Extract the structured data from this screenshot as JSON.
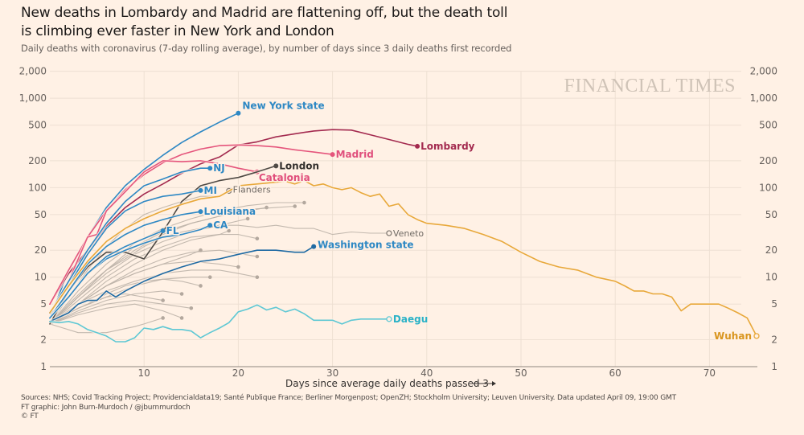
{
  "header": {
    "title_line1": "New deaths in Lombardy and Madrid are flattening off, but the death toll",
    "title_line2": "is climbing ever faster in New York and London",
    "subtitle": "Daily deaths with coronavirus (7-day rolling average), by number of days since 3 daily deaths first recorded"
  },
  "watermark": "FINANCIAL TIMES",
  "footer": {
    "sources": "Sources: NHS; Covid Tracking Project; Providencialdata19; Santé Publique France; Berliner Morgenpost; OpenZH; Stockholm University; Leuven University. Data updated April 09, 19:00 GMT",
    "credit": "FT graphic: John Burn-Murdoch / @jburnmurdoch",
    "copyright": "© FT"
  },
  "chart_data": {
    "type": "line",
    "title": "New deaths in Lombardy and Madrid are flattening off, but the death toll is climbing ever faster in New York and London",
    "subtitle": "Daily deaths with coronavirus (7-day rolling average), by number of days since 3 daily deaths first recorded",
    "xlabel": "Days since average daily deaths passed 3 →",
    "ylabel": "",
    "yscale": "log",
    "xlim": [
      0,
      76
    ],
    "ylim": [
      1,
      2000
    ],
    "xticks": [
      10,
      20,
      30,
      40,
      50,
      60,
      70
    ],
    "yticks": [
      1,
      2,
      5,
      10,
      20,
      50,
      100,
      200,
      500,
      1000,
      2000
    ],
    "ytick_labels": [
      "1",
      "2",
      "5",
      "10",
      "20",
      "50",
      "100",
      "200",
      "500",
      "1,000",
      "2,000"
    ],
    "grid": true,
    "legend": "direct-labels",
    "colors": {
      "blue": "#2e88c4",
      "darkblue": "#1f6aa3",
      "pink": "#e5557c",
      "crimson": "#a32a4f",
      "dark": "#4f4a45",
      "orange": "#e8a83a",
      "teal": "#5fc8d4",
      "grey": "#bdb2a8"
    },
    "series": [
      {
        "name": "New York state",
        "color": "blue",
        "label": true,
        "x": [
          0,
          2,
          4,
          6,
          8,
          10,
          12,
          14,
          16,
          18,
          20
        ],
        "y": [
          3.5,
          12,
          28,
          60,
          105,
          160,
          230,
          320,
          420,
          540,
          680
        ]
      },
      {
        "name": "Lombardy",
        "color": "crimson",
        "label": true,
        "x": [
          0,
          2,
          4,
          6,
          8,
          10,
          12,
          14,
          16,
          18,
          20,
          22,
          24,
          26,
          28,
          30,
          32,
          34,
          36,
          38,
          39
        ],
        "y": [
          5,
          11,
          20,
          37,
          60,
          85,
          110,
          145,
          185,
          220,
          300,
          325,
          370,
          400,
          430,
          445,
          440,
          390,
          345,
          305,
          290
        ]
      },
      {
        "name": "Madrid",
        "color": "pink",
        "label": true,
        "x": [
          0,
          2,
          4,
          6,
          8,
          10,
          12,
          14,
          16,
          18,
          20,
          22,
          24,
          26,
          28,
          30
        ],
        "y": [
          5,
          12,
          28,
          55,
          95,
          140,
          190,
          235,
          270,
          295,
          300,
          295,
          285,
          265,
          250,
          235
        ]
      },
      {
        "name": "Catalonia",
        "color": "pink",
        "label": true,
        "x": [
          0,
          2,
          4,
          5,
          6,
          8,
          10,
          12,
          14,
          16,
          18,
          20,
          22
        ],
        "y": [
          4,
          9,
          28,
          30,
          55,
          90,
          150,
          200,
          195,
          200,
          185,
          165,
          150
        ]
      },
      {
        "name": "London",
        "color": "dark",
        "label": true,
        "x": [
          0,
          2,
          4,
          6,
          8,
          10,
          12,
          14,
          16,
          18,
          20,
          22,
          24
        ],
        "y": [
          3,
          7,
          13,
          19,
          19,
          16,
          32,
          70,
          105,
          120,
          130,
          150,
          175
        ]
      },
      {
        "name": "NJ",
        "color": "blue",
        "label": true,
        "x": [
          0,
          2,
          4,
          6,
          8,
          10,
          12,
          14,
          16,
          17
        ],
        "y": [
          4,
          9,
          20,
          40,
          70,
          105,
          125,
          150,
          165,
          165
        ]
      },
      {
        "name": "MI",
        "color": "blue",
        "label": true,
        "x": [
          0,
          2,
          4,
          6,
          8,
          10,
          12,
          14,
          16
        ],
        "y": [
          4,
          8,
          18,
          35,
          55,
          70,
          80,
          85,
          93
        ]
      },
      {
        "name": "Louisiana",
        "color": "blue",
        "label": true,
        "x": [
          0,
          2,
          4,
          6,
          8,
          10,
          12,
          14,
          16
        ],
        "y": [
          3.5,
          7,
          14,
          22,
          30,
          38,
          44,
          50,
          54
        ]
      },
      {
        "name": "CA",
        "color": "blue",
        "label": true,
        "x": [
          0,
          2,
          4,
          6,
          8,
          10,
          12,
          14,
          16,
          17
        ],
        "y": [
          3.5,
          6,
          11,
          16,
          20,
          24,
          28,
          30,
          34,
          38
        ]
      },
      {
        "name": "FL",
        "color": "blue",
        "label": true,
        "x": [
          0,
          2,
          4,
          6,
          8,
          10,
          12
        ],
        "y": [
          3.5,
          6,
          11,
          17,
          22,
          27,
          33
        ]
      },
      {
        "name": "Washington state",
        "color": "darkblue",
        "label": true,
        "x": [
          0,
          2,
          3,
          4,
          5,
          6,
          7,
          8,
          10,
          12,
          14,
          16,
          18,
          20,
          22,
          24,
          26,
          27,
          28
        ],
        "y": [
          3.2,
          4,
          5,
          5.5,
          5.5,
          7,
          6,
          7,
          9,
          11,
          13,
          15,
          16,
          18,
          20,
          20,
          19,
          19,
          22
        ]
      },
      {
        "name": "Flanders",
        "color": "grey",
        "label": true,
        "x": [
          0,
          2,
          4,
          6,
          8,
          10,
          12,
          14,
          16,
          18,
          19
        ],
        "y": [
          3,
          6,
          12,
          22,
          35,
          50,
          60,
          70,
          80,
          80,
          92
        ]
      },
      {
        "name": "Veneto",
        "color": "grey",
        "label": true,
        "x": [
          0,
          2,
          4,
          6,
          8,
          10,
          12,
          14,
          16,
          18,
          20,
          22,
          24,
          26,
          28,
          30,
          32,
          34,
          36
        ],
        "y": [
          3,
          5,
          8,
          12,
          16,
          22,
          28,
          32,
          35,
          38,
          38,
          36,
          38,
          35,
          35,
          30,
          32,
          31,
          31
        ]
      },
      {
        "name": "Daegu",
        "color": "teal",
        "label": true,
        "x": [
          0,
          1,
          2,
          3,
          4,
          5,
          6,
          7,
          8,
          9,
          10,
          11,
          12,
          13,
          14,
          15,
          16,
          17,
          18,
          19,
          20,
          21,
          22,
          23,
          24,
          25,
          26,
          27,
          28,
          29,
          30,
          31,
          32,
          33,
          34,
          35,
          36
        ],
        "y": [
          3.2,
          3.1,
          3.2,
          3,
          2.6,
          2.4,
          2.2,
          1.9,
          1.9,
          2.1,
          2.7,
          2.6,
          2.8,
          2.6,
          2.6,
          2.5,
          2.1,
          2.4,
          2.7,
          3.1,
          4.1,
          4.4,
          4.9,
          4.3,
          4.6,
          4.1,
          4.4,
          3.9,
          3.3,
          3.3,
          3.3,
          3.0,
          3.3,
          3.4,
          3.4,
          3.4,
          3.4
        ]
      },
      {
        "name": "Wuhan",
        "color": "orange",
        "label": true,
        "x": [
          0,
          2,
          4,
          6,
          8,
          10,
          12,
          14,
          16,
          18,
          20,
          22,
          24,
          25,
          26,
          27,
          28,
          29,
          30,
          31,
          32,
          33,
          34,
          35,
          36,
          37,
          38,
          39,
          40,
          42,
          44,
          46,
          48,
          50,
          52,
          54,
          56,
          58,
          60,
          61,
          62,
          63,
          64,
          65,
          66,
          67,
          68,
          69,
          70,
          71,
          72,
          73,
          74,
          75
        ],
        "y": [
          4,
          8,
          15,
          25,
          35,
          45,
          55,
          65,
          75,
          80,
          105,
          110,
          115,
          118,
          110,
          120,
          105,
          110,
          100,
          95,
          100,
          88,
          80,
          85,
          62,
          66,
          50,
          44,
          40,
          38,
          35,
          30,
          25,
          19,
          15,
          13,
          12,
          10,
          9,
          8,
          7,
          7,
          6.5,
          6.5,
          6,
          4.2,
          5,
          5,
          5,
          5,
          4.5,
          4,
          3.5,
          2.2
        ]
      },
      {
        "name": "Other regions",
        "color": "grey",
        "label": false,
        "x": [
          0,
          3,
          6,
          9,
          12,
          15,
          18,
          21,
          24,
          27
        ],
        "y": [
          3,
          7,
          14,
          24,
          35,
          45,
          55,
          63,
          68,
          68
        ]
      },
      {
        "name": "Other regions",
        "color": "grey",
        "label": false,
        "x": [
          0,
          3,
          6,
          9,
          12,
          15,
          18,
          21,
          23
        ],
        "y": [
          3,
          6,
          12,
          20,
          30,
          40,
          48,
          55,
          60
        ]
      },
      {
        "name": "Other regions",
        "color": "grey",
        "label": false,
        "x": [
          0,
          3,
          6,
          9,
          12,
          15,
          18,
          20,
          22
        ],
        "y": [
          3,
          5.5,
          10,
          16,
          22,
          28,
          30,
          30,
          27
        ]
      },
      {
        "name": "Other regions",
        "color": "grey",
        "label": false,
        "x": [
          0,
          3,
          6,
          9,
          12,
          15,
          18,
          22
        ],
        "y": [
          3,
          5,
          8,
          12,
          16,
          19,
          20,
          17
        ]
      },
      {
        "name": "Other regions",
        "color": "grey",
        "label": false,
        "x": [
          0,
          3,
          6,
          9,
          12,
          15,
          18,
          20
        ],
        "y": [
          3,
          5,
          8,
          11,
          14,
          15,
          14,
          13
        ]
      },
      {
        "name": "Other regions",
        "color": "grey",
        "label": false,
        "x": [
          0,
          3,
          6,
          9,
          12,
          15,
          18,
          20,
          22
        ],
        "y": [
          3,
          5,
          7,
          9,
          11,
          12,
          12,
          11,
          10
        ]
      },
      {
        "name": "Other regions",
        "color": "grey",
        "label": false,
        "x": [
          0,
          3,
          6,
          9,
          12,
          15,
          17
        ],
        "y": [
          3,
          4.5,
          6,
          8,
          9.5,
          10,
          10
        ]
      },
      {
        "name": "Other regions",
        "color": "grey",
        "label": false,
        "x": [
          0,
          3,
          6,
          9,
          12,
          14
        ],
        "y": [
          3,
          4.2,
          5.5,
          6.5,
          7,
          6.5
        ]
      },
      {
        "name": "Other regions",
        "color": "grey",
        "label": false,
        "x": [
          0,
          3,
          6,
          9,
          12,
          15
        ],
        "y": [
          3,
          4,
          5,
          5.5,
          5,
          4.5
        ]
      },
      {
        "name": "Other regions",
        "color": "grey",
        "label": false,
        "x": [
          0,
          3,
          6,
          9,
          12,
          14
        ],
        "y": [
          3,
          3.8,
          4.5,
          5,
          4.2,
          3.5
        ]
      },
      {
        "name": "Other regions",
        "color": "grey",
        "label": false,
        "x": [
          0,
          3,
          6,
          9,
          10,
          12
        ],
        "y": [
          3,
          2.4,
          2.4,
          2.8,
          3.0,
          3.5
        ]
      },
      {
        "name": "Other regions",
        "color": "grey",
        "label": false,
        "x": [
          0,
          3,
          6,
          9,
          12,
          15,
          18,
          21
        ],
        "y": [
          3,
          6,
          11,
          18,
          25,
          32,
          38,
          45
        ]
      },
      {
        "name": "Other regions",
        "color": "grey",
        "label": false,
        "x": [
          0,
          3,
          6,
          9,
          12,
          15,
          18,
          19
        ],
        "y": [
          3,
          5,
          9,
          14,
          20,
          26,
          30,
          33
        ]
      },
      {
        "name": "Other regions",
        "color": "grey",
        "label": false,
        "x": [
          0,
          3,
          6,
          9,
          12,
          15,
          16
        ],
        "y": [
          3,
          5,
          8,
          11,
          14,
          18,
          20
        ]
      },
      {
        "name": "Other regions",
        "color": "grey",
        "label": false,
        "x": [
          0,
          3,
          6,
          8,
          10,
          12
        ],
        "y": [
          3,
          4.5,
          6,
          6.5,
          6,
          5.5
        ]
      },
      {
        "name": "Other regions",
        "color": "grey",
        "label": false,
        "x": [
          0,
          2,
          4,
          6,
          8,
          10,
          12,
          14,
          16
        ],
        "y": [
          3,
          4,
          5,
          6.5,
          8,
          9,
          9.5,
          9,
          8
        ]
      },
      {
        "name": "Other regions",
        "color": "grey",
        "label": false,
        "x": [
          0,
          3,
          6,
          9,
          12,
          15,
          18,
          20,
          22,
          24,
          26
        ],
        "y": [
          3,
          6,
          12,
          22,
          32,
          40,
          48,
          55,
          58,
          60,
          62
        ]
      }
    ]
  }
}
